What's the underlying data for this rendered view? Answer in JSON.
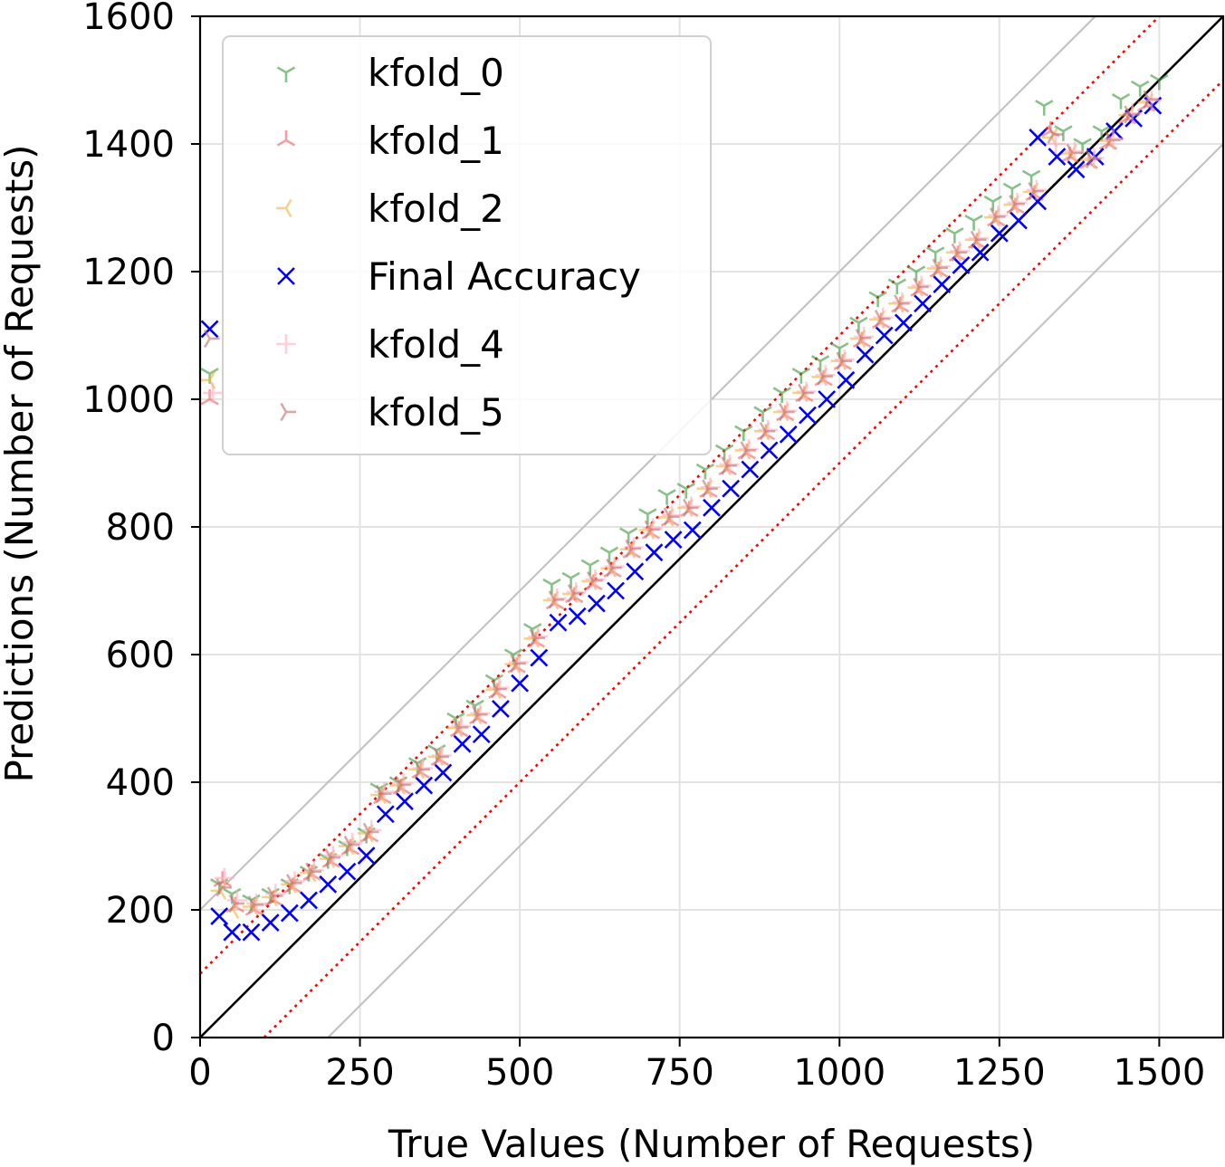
{
  "chart_data": {
    "type": "scatter",
    "xlabel": "True Values (Number of Requests)",
    "ylabel": "Predictions (Number of Requests)",
    "xlim": [
      0,
      1600
    ],
    "ylim": [
      0,
      1600
    ],
    "x_ticks": [
      0,
      250,
      500,
      750,
      1000,
      1250,
      1500
    ],
    "y_ticks": [
      0,
      200,
      400,
      600,
      800,
      1000,
      1200,
      1400,
      1600
    ],
    "grid": true,
    "legend_position": "top-left",
    "reference_lines": [
      {
        "style": "solid",
        "color": "#000000",
        "offset": 0
      },
      {
        "style": "dotted",
        "color": "#ff0000",
        "offset": 100
      },
      {
        "style": "dotted",
        "color": "#ff0000",
        "offset": -100
      },
      {
        "style": "solid",
        "color": "#c0c0c0",
        "offset": 200
      },
      {
        "style": "solid",
        "color": "#c0c0c0",
        "offset": -200
      }
    ],
    "series": [
      {
        "name": "kfold_0",
        "marker": "tri-down",
        "color": "#3a9a3a",
        "points": [
          [
            15,
            1040
          ],
          [
            30,
            240
          ],
          [
            50,
            225
          ],
          [
            80,
            215
          ],
          [
            110,
            225
          ],
          [
            140,
            240
          ],
          [
            170,
            260
          ],
          [
            200,
            280
          ],
          [
            230,
            300
          ],
          [
            260,
            320
          ],
          [
            280,
            390
          ],
          [
            310,
            400
          ],
          [
            340,
            430
          ],
          [
            370,
            450
          ],
          [
            400,
            500
          ],
          [
            430,
            520
          ],
          [
            460,
            560
          ],
          [
            490,
            600
          ],
          [
            520,
            640
          ],
          [
            550,
            710
          ],
          [
            580,
            720
          ],
          [
            610,
            740
          ],
          [
            640,
            760
          ],
          [
            670,
            790
          ],
          [
            700,
            820
          ],
          [
            730,
            850
          ],
          [
            760,
            860
          ],
          [
            790,
            890
          ],
          [
            820,
            920
          ],
          [
            850,
            950
          ],
          [
            880,
            980
          ],
          [
            910,
            1010
          ],
          [
            940,
            1040
          ],
          [
            970,
            1060
          ],
          [
            1000,
            1080
          ],
          [
            1030,
            1120
          ],
          [
            1060,
            1160
          ],
          [
            1090,
            1180
          ],
          [
            1120,
            1200
          ],
          [
            1150,
            1230
          ],
          [
            1180,
            1260
          ],
          [
            1210,
            1280
          ],
          [
            1240,
            1310
          ],
          [
            1270,
            1330
          ],
          [
            1300,
            1350
          ],
          [
            1320,
            1460
          ],
          [
            1350,
            1420
          ],
          [
            1380,
            1400
          ],
          [
            1410,
            1420
          ],
          [
            1440,
            1470
          ],
          [
            1470,
            1490
          ],
          [
            1500,
            1500
          ]
        ]
      },
      {
        "name": "kfold_1",
        "marker": "tri-up",
        "color": "#f06060",
        "points": [
          [
            15,
            1000
          ],
          [
            35,
            245
          ],
          [
            55,
            205
          ],
          [
            85,
            200
          ],
          [
            115,
            215
          ],
          [
            145,
            235
          ],
          [
            175,
            255
          ],
          [
            205,
            275
          ],
          [
            235,
            295
          ],
          [
            265,
            315
          ],
          [
            285,
            375
          ],
          [
            315,
            390
          ],
          [
            345,
            415
          ],
          [
            375,
            435
          ],
          [
            405,
            480
          ],
          [
            435,
            500
          ],
          [
            465,
            540
          ],
          [
            495,
            580
          ],
          [
            525,
            620
          ],
          [
            555,
            680
          ],
          [
            585,
            690
          ],
          [
            615,
            710
          ],
          [
            645,
            730
          ],
          [
            675,
            760
          ],
          [
            705,
            790
          ],
          [
            735,
            810
          ],
          [
            765,
            825
          ],
          [
            795,
            855
          ],
          [
            825,
            890
          ],
          [
            855,
            915
          ],
          [
            885,
            945
          ],
          [
            915,
            975
          ],
          [
            945,
            1005
          ],
          [
            975,
            1030
          ],
          [
            1005,
            1055
          ],
          [
            1035,
            1090
          ],
          [
            1065,
            1120
          ],
          [
            1095,
            1145
          ],
          [
            1125,
            1170
          ],
          [
            1155,
            1200
          ],
          [
            1185,
            1225
          ],
          [
            1215,
            1245
          ],
          [
            1245,
            1280
          ],
          [
            1275,
            1300
          ],
          [
            1305,
            1320
          ],
          [
            1330,
            1420
          ],
          [
            1360,
            1380
          ],
          [
            1390,
            1370
          ],
          [
            1420,
            1400
          ],
          [
            1450,
            1440
          ],
          [
            1480,
            1460
          ]
        ]
      },
      {
        "name": "kfold_2",
        "marker": "tri-left",
        "color": "#f5b040",
        "points": [
          [
            15,
            1030
          ],
          [
            32,
            230
          ],
          [
            52,
            200
          ],
          [
            82,
            205
          ],
          [
            112,
            220
          ],
          [
            142,
            240
          ],
          [
            172,
            258
          ],
          [
            202,
            280
          ],
          [
            232,
            300
          ],
          [
            262,
            320
          ],
          [
            282,
            380
          ],
          [
            312,
            395
          ],
          [
            342,
            420
          ],
          [
            372,
            440
          ],
          [
            402,
            485
          ],
          [
            432,
            505
          ],
          [
            462,
            545
          ],
          [
            492,
            585
          ],
          [
            522,
            625
          ],
          [
            552,
            685
          ],
          [
            582,
            695
          ],
          [
            612,
            715
          ],
          [
            642,
            735
          ],
          [
            672,
            765
          ],
          [
            702,
            795
          ],
          [
            732,
            815
          ],
          [
            762,
            830
          ],
          [
            792,
            860
          ],
          [
            822,
            895
          ],
          [
            852,
            920
          ],
          [
            882,
            950
          ],
          [
            912,
            980
          ],
          [
            942,
            1010
          ],
          [
            972,
            1035
          ],
          [
            1002,
            1060
          ],
          [
            1032,
            1095
          ],
          [
            1062,
            1125
          ],
          [
            1092,
            1150
          ],
          [
            1122,
            1175
          ],
          [
            1152,
            1205
          ],
          [
            1182,
            1230
          ],
          [
            1212,
            1250
          ],
          [
            1242,
            1285
          ],
          [
            1272,
            1305
          ],
          [
            1302,
            1325
          ],
          [
            1332,
            1410
          ],
          [
            1362,
            1385
          ],
          [
            1392,
            1375
          ],
          [
            1422,
            1405
          ],
          [
            1452,
            1445
          ],
          [
            1482,
            1465
          ]
        ]
      },
      {
        "name": "Final Accuracy",
        "marker": "x",
        "color": "#0000ff",
        "points": [
          [
            15,
            1110
          ],
          [
            30,
            190
          ],
          [
            50,
            165
          ],
          [
            80,
            165
          ],
          [
            110,
            180
          ],
          [
            140,
            195
          ],
          [
            170,
            215
          ],
          [
            200,
            240
          ],
          [
            230,
            260
          ],
          [
            260,
            285
          ],
          [
            290,
            350
          ],
          [
            320,
            370
          ],
          [
            350,
            395
          ],
          [
            380,
            415
          ],
          [
            410,
            460
          ],
          [
            440,
            475
          ],
          [
            470,
            515
          ],
          [
            500,
            555
          ],
          [
            530,
            595
          ],
          [
            560,
            650
          ],
          [
            590,
            660
          ],
          [
            620,
            680
          ],
          [
            650,
            700
          ],
          [
            680,
            730
          ],
          [
            710,
            760
          ],
          [
            740,
            780
          ],
          [
            770,
            795
          ],
          [
            800,
            830
          ],
          [
            830,
            860
          ],
          [
            860,
            890
          ],
          [
            890,
            920
          ],
          [
            920,
            945
          ],
          [
            950,
            975
          ],
          [
            980,
            1000
          ],
          [
            1010,
            1030
          ],
          [
            1040,
            1070
          ],
          [
            1070,
            1100
          ],
          [
            1100,
            1120
          ],
          [
            1130,
            1150
          ],
          [
            1160,
            1180
          ],
          [
            1190,
            1210
          ],
          [
            1220,
            1230
          ],
          [
            1250,
            1260
          ],
          [
            1280,
            1280
          ],
          [
            1310,
            1310
          ],
          [
            1310,
            1410
          ],
          [
            1340,
            1380
          ],
          [
            1370,
            1360
          ],
          [
            1400,
            1380
          ],
          [
            1430,
            1420
          ],
          [
            1460,
            1440
          ],
          [
            1490,
            1460
          ]
        ]
      },
      {
        "name": "kfold_4",
        "marker": "plus",
        "color": "#ffb0c0",
        "points": [
          [
            20,
            1010
          ],
          [
            38,
            250
          ],
          [
            58,
            215
          ],
          [
            88,
            210
          ],
          [
            118,
            225
          ],
          [
            148,
            245
          ],
          [
            178,
            262
          ],
          [
            208,
            285
          ],
          [
            238,
            305
          ],
          [
            268,
            325
          ],
          [
            288,
            385
          ],
          [
            318,
            398
          ],
          [
            348,
            422
          ],
          [
            378,
            442
          ],
          [
            408,
            488
          ],
          [
            438,
            508
          ],
          [
            468,
            548
          ],
          [
            498,
            588
          ],
          [
            528,
            628
          ],
          [
            558,
            688
          ],
          [
            588,
            698
          ],
          [
            618,
            718
          ],
          [
            648,
            738
          ],
          [
            678,
            768
          ],
          [
            708,
            798
          ],
          [
            738,
            818
          ],
          [
            768,
            832
          ],
          [
            798,
            862
          ],
          [
            828,
            898
          ],
          [
            858,
            922
          ],
          [
            888,
            952
          ],
          [
            918,
            982
          ],
          [
            948,
            1012
          ],
          [
            978,
            1038
          ],
          [
            1008,
            1062
          ],
          [
            1038,
            1098
          ],
          [
            1068,
            1128
          ],
          [
            1098,
            1152
          ],
          [
            1128,
            1178
          ],
          [
            1158,
            1208
          ],
          [
            1188,
            1232
          ],
          [
            1218,
            1252
          ],
          [
            1248,
            1288
          ],
          [
            1278,
            1308
          ],
          [
            1308,
            1328
          ],
          [
            1338,
            1400
          ],
          [
            1368,
            1388
          ],
          [
            1398,
            1378
          ],
          [
            1428,
            1408
          ],
          [
            1458,
            1448
          ],
          [
            1488,
            1468
          ]
        ]
      },
      {
        "name": "kfold_5",
        "marker": "tri-right",
        "color": "#c07070",
        "points": [
          [
            15,
            1095
          ],
          [
            34,
            235
          ],
          [
            54,
            210
          ],
          [
            84,
            208
          ],
          [
            114,
            222
          ],
          [
            144,
            242
          ],
          [
            174,
            260
          ],
          [
            204,
            282
          ],
          [
            234,
            302
          ],
          [
            264,
            322
          ],
          [
            284,
            382
          ],
          [
            314,
            396
          ],
          [
            344,
            420
          ],
          [
            374,
            440
          ],
          [
            404,
            486
          ],
          [
            434,
            506
          ],
          [
            464,
            546
          ],
          [
            494,
            586
          ],
          [
            524,
            626
          ],
          [
            554,
            686
          ],
          [
            584,
            696
          ],
          [
            614,
            716
          ],
          [
            644,
            736
          ],
          [
            674,
            766
          ],
          [
            704,
            796
          ],
          [
            734,
            816
          ],
          [
            764,
            830
          ],
          [
            794,
            860
          ],
          [
            824,
            896
          ],
          [
            854,
            920
          ],
          [
            884,
            950
          ],
          [
            914,
            980
          ],
          [
            944,
            1010
          ],
          [
            974,
            1036
          ],
          [
            1004,
            1060
          ],
          [
            1034,
            1096
          ],
          [
            1064,
            1126
          ],
          [
            1094,
            1150
          ],
          [
            1124,
            1176
          ],
          [
            1154,
            1206
          ],
          [
            1184,
            1230
          ],
          [
            1214,
            1250
          ],
          [
            1244,
            1286
          ],
          [
            1274,
            1306
          ],
          [
            1304,
            1326
          ],
          [
            1334,
            1415
          ],
          [
            1364,
            1386
          ],
          [
            1394,
            1376
          ],
          [
            1424,
            1406
          ],
          [
            1454,
            1446
          ],
          [
            1484,
            1470
          ]
        ]
      }
    ]
  }
}
